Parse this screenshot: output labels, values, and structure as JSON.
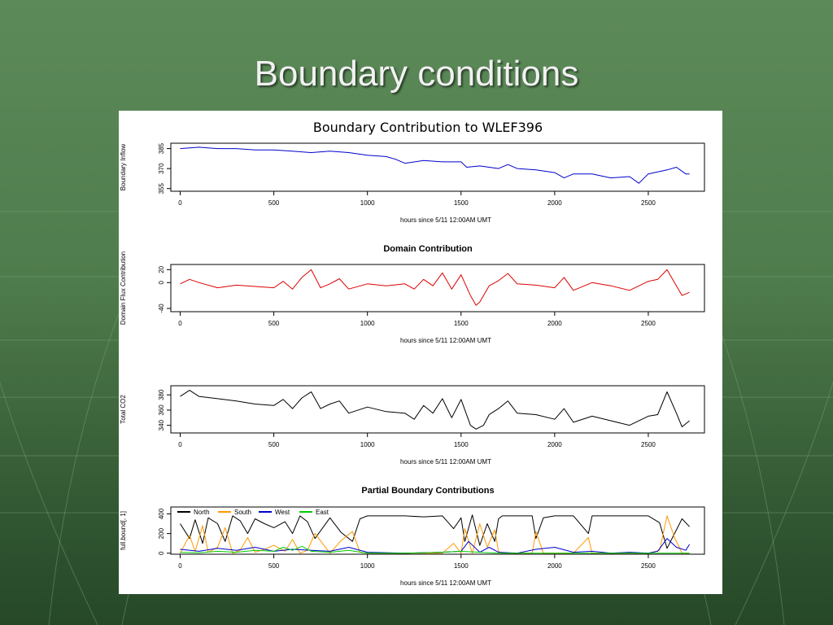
{
  "slide": {
    "title": "Boundary conditions"
  },
  "colors": {
    "background": "#4f7c4c",
    "panel": "#ffffff",
    "north": "#000000",
    "south": "#ff9900",
    "west": "#0000cc",
    "east": "#00cc00",
    "inflow": "#0000cc",
    "domain": "#dd0000",
    "total": "#000000"
  },
  "chart_data": [
    {
      "type": "line",
      "title": "Boundary Contribution to WLEF396",
      "xlabel": "hours since 5/11 12:00AM UMT",
      "ylabel": "Boundary Inflow",
      "xlim": [
        -50,
        2800
      ],
      "ylim": [
        353,
        389
      ],
      "x_ticks": [
        0,
        500,
        1000,
        1500,
        2000,
        2500
      ],
      "y_ticks": [
        355,
        370,
        385
      ],
      "series": [
        {
          "color": "#0000cc",
          "x": [
            0,
            100,
            200,
            300,
            400,
            500,
            600,
            700,
            800,
            900,
            1000,
            1100,
            1150,
            1200,
            1300,
            1400,
            1500,
            1530,
            1600,
            1700,
            1750,
            1800,
            1900,
            2000,
            2050,
            2100,
            2200,
            2300,
            2400,
            2450,
            2500,
            2600,
            2650,
            2700,
            2720
          ],
          "y": [
            385,
            386,
            385,
            385,
            384,
            384,
            383,
            382,
            383,
            382,
            380,
            379,
            377,
            374,
            376,
            375,
            375,
            371,
            372,
            370,
            373,
            370,
            369,
            367,
            363,
            366,
            366,
            363,
            364,
            359,
            366,
            369,
            371,
            366,
            366
          ]
        }
      ]
    },
    {
      "type": "line",
      "title": "Domain Contribution",
      "xlabel": "hours since 5/11 12:00AM UMT",
      "ylabel": "Domain Flux Contribution",
      "xlim": [
        -50,
        2800
      ],
      "ylim": [
        -45,
        28
      ],
      "x_ticks": [
        0,
        500,
        1000,
        1500,
        2000,
        2500
      ],
      "y_ticks": [
        -40,
        0,
        20
      ],
      "series": [
        {
          "color": "#dd0000",
          "x": [
            0,
            50,
            100,
            200,
            300,
            400,
            500,
            550,
            600,
            650,
            700,
            750,
            800,
            850,
            900,
            1000,
            1100,
            1200,
            1250,
            1300,
            1350,
            1400,
            1450,
            1500,
            1550,
            1580,
            1600,
            1650,
            1700,
            1750,
            1800,
            1900,
            2000,
            2050,
            2100,
            2200,
            2300,
            2400,
            2500,
            2550,
            2600,
            2650,
            2680,
            2720
          ],
          "y": [
            -2,
            5,
            0,
            -8,
            -4,
            -6,
            -8,
            2,
            -10,
            8,
            20,
            -8,
            -2,
            6,
            -10,
            -2,
            -5,
            -2,
            -10,
            5,
            -5,
            15,
            -10,
            12,
            -20,
            -35,
            -30,
            -5,
            3,
            14,
            -2,
            -4,
            -8,
            8,
            -12,
            0,
            -5,
            -12,
            2,
            5,
            20,
            -5,
            -20,
            -15
          ]
        }
      ]
    },
    {
      "type": "line",
      "title": "",
      "xlabel": "hours since 5/11 12:00AM UMT",
      "ylabel": "Total CO2",
      "xlim": [
        -50,
        2800
      ],
      "ylim": [
        330,
        392
      ],
      "x_ticks": [
        0,
        500,
        1000,
        1500,
        2000,
        2500
      ],
      "y_ticks": [
        340,
        360,
        380
      ],
      "series": [
        {
          "color": "#000000",
          "x": [
            0,
            50,
            100,
            200,
            300,
            400,
            500,
            550,
            600,
            650,
            700,
            750,
            800,
            850,
            900,
            1000,
            1100,
            1200,
            1250,
            1300,
            1350,
            1400,
            1450,
            1500,
            1550,
            1580,
            1620,
            1650,
            1700,
            1750,
            1800,
            1900,
            2000,
            2050,
            2100,
            2200,
            2300,
            2400,
            2500,
            2550,
            2600,
            2650,
            2680,
            2720
          ],
          "y": [
            378,
            386,
            378,
            375,
            372,
            368,
            366,
            374,
            362,
            376,
            384,
            362,
            368,
            372,
            356,
            364,
            358,
            356,
            348,
            366,
            356,
            375,
            350,
            374,
            340,
            335,
            340,
            354,
            362,
            372,
            356,
            354,
            348,
            362,
            344,
            352,
            346,
            340,
            352,
            354,
            384,
            356,
            338,
            346
          ]
        }
      ]
    },
    {
      "type": "line",
      "title": "Partial Boundary Contributions",
      "xlabel": "hours since 5/11 12:00AM UMT",
      "ylabel": "full.bound[, 1]",
      "xlim": [
        -50,
        2800
      ],
      "ylim": [
        -10,
        470
      ],
      "x_ticks": [
        0,
        500,
        1000,
        1500,
        2000,
        2500
      ],
      "y_ticks": [
        0,
        200,
        400
      ],
      "legend": [
        "North",
        "South",
        "West",
        "East"
      ],
      "legend_position": "top-left",
      "series": [
        {
          "name": "North",
          "color": "#000000",
          "x": [
            0,
            50,
            80,
            120,
            150,
            200,
            240,
            280,
            320,
            360,
            400,
            450,
            500,
            560,
            600,
            640,
            680,
            720,
            800,
            860,
            920,
            960,
            1000,
            1200,
            1300,
            1400,
            1460,
            1500,
            1520,
            1560,
            1600,
            1640,
            1680,
            1700,
            1720,
            1880,
            1900,
            1940,
            2000,
            2100,
            2180,
            2200,
            2240,
            2500,
            2560,
            2600,
            2640,
            2680,
            2720
          ],
          "y": [
            300,
            150,
            340,
            100,
            360,
            300,
            120,
            380,
            330,
            200,
            350,
            300,
            260,
            320,
            200,
            380,
            320,
            150,
            360,
            210,
            120,
            350,
            380,
            380,
            370,
            380,
            250,
            360,
            120,
            390,
            80,
            300,
            120,
            350,
            380,
            380,
            150,
            360,
            380,
            380,
            200,
            380,
            380,
            380,
            310,
            50,
            200,
            350,
            270
          ]
        },
        {
          "name": "South",
          "color": "#ff9900",
          "x": [
            0,
            50,
            80,
            120,
            150,
            200,
            240,
            280,
            320,
            360,
            400,
            450,
            500,
            560,
            600,
            640,
            680,
            720,
            800,
            860,
            920,
            960,
            1000,
            1200,
            1300,
            1400,
            1460,
            1500,
            1520,
            1560,
            1600,
            1640,
            1680,
            1700,
            1720,
            1880,
            1900,
            1940,
            2000,
            2100,
            2180,
            2200,
            2240,
            2500,
            2560,
            2600,
            2640,
            2680,
            2720
          ],
          "y": [
            0,
            180,
            20,
            280,
            10,
            60,
            260,
            0,
            30,
            160,
            10,
            40,
            80,
            20,
            140,
            0,
            30,
            200,
            0,
            130,
            220,
            10,
            0,
            0,
            0,
            0,
            100,
            0,
            250,
            0,
            300,
            60,
            240,
            20,
            0,
            0,
            220,
            0,
            0,
            0,
            160,
            0,
            0,
            0,
            30,
            380,
            160,
            0,
            0
          ]
        },
        {
          "name": "West",
          "color": "#0000cc",
          "x": [
            0,
            100,
            200,
            300,
            400,
            500,
            600,
            700,
            800,
            900,
            1000,
            1200,
            1400,
            1500,
            1540,
            1600,
            1650,
            1700,
            1800,
            1900,
            2000,
            2100,
            2200,
            2300,
            2400,
            2500,
            2550,
            2600,
            2650,
            2700,
            2720
          ],
          "y": [
            40,
            20,
            50,
            30,
            60,
            20,
            40,
            30,
            20,
            60,
            10,
            0,
            10,
            20,
            120,
            10,
            60,
            10,
            0,
            40,
            60,
            10,
            20,
            0,
            10,
            0,
            20,
            150,
            60,
            30,
            90
          ]
        },
        {
          "name": "East",
          "color": "#00cc00",
          "x": [
            0,
            100,
            200,
            300,
            400,
            500,
            550,
            600,
            650,
            700,
            800,
            900,
            1000,
            1200,
            1400,
            1500,
            1600,
            1700,
            2000,
            2500,
            2720
          ],
          "y": [
            10,
            5,
            20,
            10,
            30,
            20,
            60,
            30,
            70,
            20,
            10,
            30,
            0,
            0,
            10,
            20,
            10,
            0,
            0,
            0,
            0
          ]
        }
      ]
    }
  ]
}
